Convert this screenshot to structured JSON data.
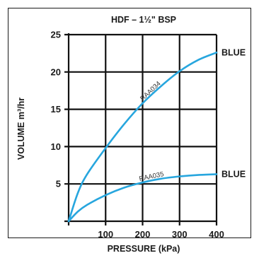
{
  "chart_data": {
    "type": "line",
    "title": "HDF – 1½\" BSP",
    "xlabel": "PRESSURE (kPa)",
    "ylabel": "VOLUME m³/hr",
    "xlim": [
      0,
      400
    ],
    "ylim": [
      0,
      25
    ],
    "x_ticks": [
      100,
      200,
      300,
      400
    ],
    "y_ticks": [
      5,
      10,
      15,
      20,
      25
    ],
    "grid": true,
    "series": [
      {
        "name": "RAA034",
        "end_label": "BLUE",
        "color": "#27a6de",
        "x": [
          0,
          25,
          50,
          100,
          150,
          200,
          250,
          300,
          350,
          400
        ],
        "y": [
          0,
          3.8,
          6.3,
          9.8,
          13.0,
          15.8,
          18.1,
          20.1,
          21.6,
          22.6
        ]
      },
      {
        "name": "RAA035",
        "end_label": "BLUE",
        "color": "#27a6de",
        "x": [
          0,
          25,
          50,
          100,
          150,
          200,
          250,
          300,
          350,
          400
        ],
        "y": [
          0,
          1.3,
          2.2,
          3.5,
          4.5,
          5.2,
          5.7,
          6.0,
          6.2,
          6.3
        ]
      }
    ]
  }
}
